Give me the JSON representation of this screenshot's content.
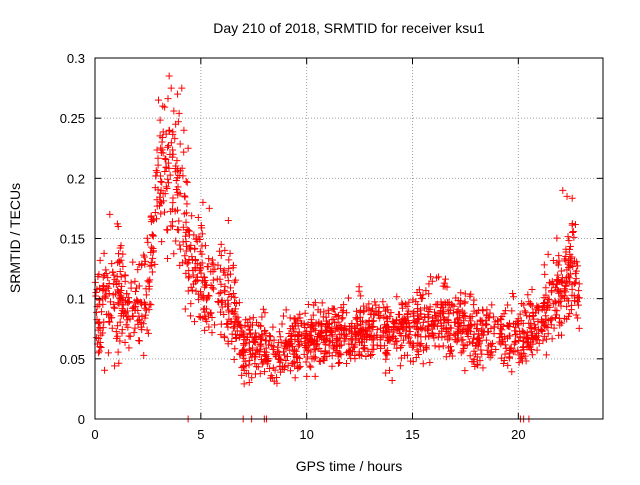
{
  "chart_data": {
    "type": "scatter",
    "title": "Day 210 of 2018, SRMTID for receiver ksu1",
    "xlabel": "GPS time / hours",
    "ylabel": "SRMTID / TECUs",
    "xlim": [
      0,
      24
    ],
    "ylim": [
      0,
      0.3
    ],
    "x_ticks": [
      0,
      5,
      10,
      15,
      20
    ],
    "x_tick_labels": [
      "0",
      "5",
      "10",
      "15",
      "20"
    ],
    "y_ticks": [
      0,
      0.05,
      0.1,
      0.15,
      0.2,
      0.25,
      0.3
    ],
    "y_tick_labels": [
      "0",
      "0.05",
      "0.1",
      "0.15",
      "0.2",
      "0.25",
      "0.3"
    ],
    "grid": true,
    "marker": "+",
    "color": "#ff0000",
    "series": [
      {
        "name": "SRMTID",
        "profile": [
          [
            0.0,
            0.09,
            0.03
          ],
          [
            0.5,
            0.1,
            0.035
          ],
          [
            1.0,
            0.1,
            0.035
          ],
          [
            1.5,
            0.095,
            0.03
          ],
          [
            2.0,
            0.09,
            0.03
          ],
          [
            2.5,
            0.11,
            0.035
          ],
          [
            3.0,
            0.2,
            0.045
          ],
          [
            3.5,
            0.21,
            0.045
          ],
          [
            4.0,
            0.19,
            0.045
          ],
          [
            4.5,
            0.13,
            0.035
          ],
          [
            5.0,
            0.12,
            0.035
          ],
          [
            5.5,
            0.11,
            0.03
          ],
          [
            6.0,
            0.1,
            0.03
          ],
          [
            6.5,
            0.09,
            0.03
          ],
          [
            7.0,
            0.06,
            0.02
          ],
          [
            7.5,
            0.06,
            0.02
          ],
          [
            8.0,
            0.06,
            0.02
          ],
          [
            8.5,
            0.05,
            0.02
          ],
          [
            9.0,
            0.06,
            0.02
          ],
          [
            10.0,
            0.065,
            0.02
          ],
          [
            11.0,
            0.07,
            0.02
          ],
          [
            12.0,
            0.07,
            0.02
          ],
          [
            13.0,
            0.075,
            0.02
          ],
          [
            14.0,
            0.07,
            0.02
          ],
          [
            15.0,
            0.08,
            0.025
          ],
          [
            16.0,
            0.085,
            0.025
          ],
          [
            17.0,
            0.08,
            0.025
          ],
          [
            18.0,
            0.075,
            0.025
          ],
          [
            19.0,
            0.07,
            0.02
          ],
          [
            20.0,
            0.07,
            0.02
          ],
          [
            21.0,
            0.08,
            0.025
          ],
          [
            22.0,
            0.11,
            0.035
          ],
          [
            22.5,
            0.13,
            0.035
          ],
          [
            22.9,
            0.1,
            0.03
          ]
        ],
        "peaks": [
          [
            3.0,
            0.265
          ],
          [
            3.2,
            0.26
          ],
          [
            3.6,
            0.275
          ],
          [
            3.9,
            0.27
          ],
          [
            4.1,
            0.275
          ],
          [
            3.5,
            0.24
          ],
          [
            4.2,
            0.24
          ],
          [
            4.4,
            0.225
          ],
          [
            22.1,
            0.19
          ],
          [
            22.3,
            0.185
          ],
          [
            0.7,
            0.17
          ],
          [
            1.1,
            0.16
          ],
          [
            5.1,
            0.18
          ],
          [
            5.4,
            0.175
          ],
          [
            6.3,
            0.165
          ]
        ],
        "zero_points": [
          4.4,
          7.0,
          7.4,
          8.0,
          8.1,
          20.1,
          20.25,
          20.5
        ]
      }
    ]
  }
}
